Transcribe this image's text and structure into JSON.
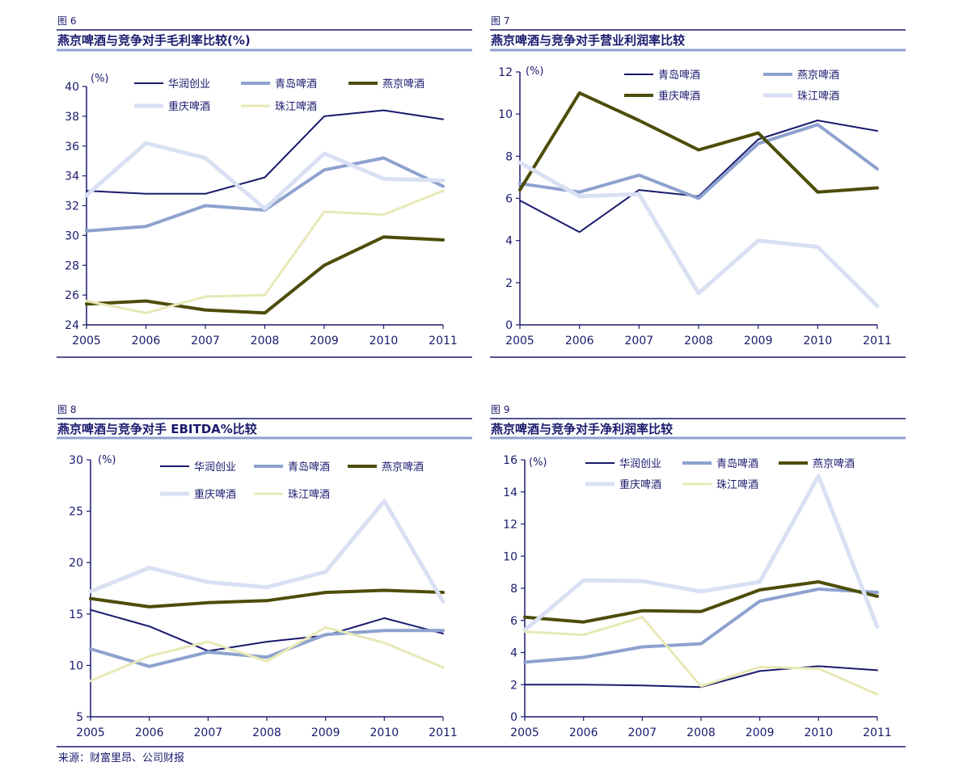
{
  "colors": {
    "text": "#1a1a6e",
    "axis": "#1a1a6e",
    "rule_dark": "#1a1a6e",
    "rule_light": "#8ea2cf"
  },
  "source": "来源：财富里昂、公司财报",
  "chart_data": [
    {
      "type": "line",
      "figure_label": "图 6",
      "title": "燕京啤酒与竞争对手毛利率比较(%)",
      "unit_label": "(%)",
      "categories": [
        "2005",
        "2006",
        "2007",
        "2008",
        "2009",
        "2010",
        "2011"
      ],
      "ylim": [
        24,
        40
      ],
      "yticks": [
        24,
        26,
        28,
        30,
        32,
        34,
        36,
        38,
        40
      ],
      "series": [
        {
          "name": "华润创业",
          "color": "#1a1a6e",
          "width": 2,
          "values": [
            33.0,
            32.8,
            32.8,
            33.9,
            38.0,
            38.4,
            37.8
          ]
        },
        {
          "name": "青岛啤酒",
          "color": "#8ea2cf",
          "width": 4,
          "values": [
            30.3,
            30.6,
            32.0,
            31.7,
            34.4,
            35.2,
            33.3
          ]
        },
        {
          "name": "燕京啤酒",
          "color": "#4d4d0a",
          "width": 4,
          "values": [
            25.4,
            25.6,
            25.0,
            24.8,
            28.0,
            29.9,
            29.7
          ]
        },
        {
          "name": "重庆啤酒",
          "color": "#d9e0f3",
          "width": 5,
          "values": [
            32.7,
            36.2,
            35.2,
            31.8,
            35.5,
            33.8,
            33.7
          ]
        },
        {
          "name": "珠江啤酒",
          "color": "#e8e8b6",
          "width": 3,
          "values": [
            25.6,
            24.8,
            25.9,
            26.0,
            31.6,
            31.4,
            33.0
          ]
        }
      ]
    },
    {
      "type": "line",
      "figure_label": "图 7",
      "title": "燕京啤酒与竞争对手营业利润率比较",
      "unit_label": "(%)",
      "categories": [
        "2005",
        "2006",
        "2007",
        "2008",
        "2009",
        "2010",
        "2011"
      ],
      "ylim": [
        0,
        12
      ],
      "yticks": [
        0,
        2,
        4,
        6,
        8,
        10,
        12
      ],
      "series": [
        {
          "name": "青岛啤酒",
          "color": "#1a1a6e",
          "width": 2,
          "values": [
            5.9,
            4.4,
            6.4,
            6.1,
            8.8,
            9.7,
            9.2
          ]
        },
        {
          "name": "燕京啤酒",
          "color": "#8ea2cf",
          "width": 4,
          "values": [
            6.7,
            6.3,
            7.1,
            6.0,
            8.6,
            9.5,
            7.4
          ]
        },
        {
          "name": "重庆啤酒",
          "color": "#4d4d0a",
          "width": 4,
          "values": [
            6.4,
            11.0,
            9.7,
            8.3,
            9.1,
            6.3,
            6.5
          ]
        },
        {
          "name": "珠江啤酒",
          "color": "#d9e0f3",
          "width": 5,
          "values": [
            7.7,
            6.1,
            6.2,
            1.5,
            4.0,
            3.7,
            0.9
          ]
        }
      ]
    },
    {
      "type": "line",
      "figure_label": "图 8",
      "title": "燕京啤酒与竞争对手 EBITDA%比较",
      "unit_label": "(%)",
      "categories": [
        "2005",
        "2006",
        "2007",
        "2008",
        "2009",
        "2010",
        "2011"
      ],
      "ylim": [
        5,
        30
      ],
      "yticks": [
        5,
        10,
        15,
        20,
        25,
        30
      ],
      "series": [
        {
          "name": "华润创业",
          "color": "#1a1a6e",
          "width": 2,
          "values": [
            15.4,
            13.8,
            11.4,
            12.3,
            12.9,
            14.6,
            13.1
          ]
        },
        {
          "name": "青岛啤酒",
          "color": "#8ea2cf",
          "width": 4,
          "values": [
            11.6,
            9.9,
            11.3,
            10.8,
            13.0,
            13.4,
            13.4
          ]
        },
        {
          "name": "燕京啤酒",
          "color": "#4d4d0a",
          "width": 4,
          "values": [
            16.5,
            15.7,
            16.1,
            16.3,
            17.1,
            17.3,
            17.1
          ]
        },
        {
          "name": "重庆啤酒",
          "color": "#d9e0f3",
          "width": 5,
          "values": [
            17.2,
            19.5,
            18.1,
            17.6,
            19.1,
            26.0,
            16.2
          ]
        },
        {
          "name": "珠江啤酒",
          "color": "#e8e8b6",
          "width": 3,
          "values": [
            8.5,
            10.9,
            12.3,
            10.4,
            13.7,
            12.2,
            9.8
          ]
        }
      ]
    },
    {
      "type": "line",
      "figure_label": "图 9",
      "title": "燕京啤酒与竞争对手净利润率比较",
      "unit_label": "(%)",
      "categories": [
        "2005",
        "2006",
        "2007",
        "2008",
        "2009",
        "2010",
        "2011"
      ],
      "ylim": [
        0,
        16
      ],
      "yticks": [
        0,
        2,
        4,
        6,
        8,
        10,
        12,
        14,
        16
      ],
      "series": [
        {
          "name": "华润创业",
          "color": "#1a1a6e",
          "width": 2,
          "values": [
            2.0,
            2.0,
            1.95,
            1.85,
            2.85,
            3.15,
            2.9
          ]
        },
        {
          "name": "青岛啤酒",
          "color": "#8ea2cf",
          "width": 4,
          "values": [
            3.4,
            3.7,
            4.35,
            4.55,
            7.2,
            7.95,
            7.75
          ]
        },
        {
          "name": "燕京啤酒",
          "color": "#4d4d0a",
          "width": 4,
          "values": [
            6.2,
            5.9,
            6.6,
            6.55,
            7.9,
            8.4,
            7.5
          ]
        },
        {
          "name": "重庆啤酒",
          "color": "#d9e0f3",
          "width": 5,
          "values": [
            5.4,
            8.5,
            8.45,
            7.8,
            8.4,
            15.0,
            5.6
          ]
        },
        {
          "name": "珠江啤酒",
          "color": "#e8e8b6",
          "width": 3,
          "values": [
            5.3,
            5.1,
            6.2,
            1.9,
            3.1,
            3.0,
            1.4
          ]
        }
      ]
    }
  ]
}
